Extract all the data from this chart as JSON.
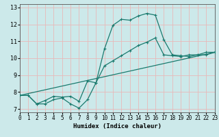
{
  "xlabel": "Humidex (Indice chaleur)",
  "xlim": [
    0,
    23
  ],
  "ylim": [
    6.8,
    13.2
  ],
  "yticks": [
    7,
    8,
    9,
    10,
    11,
    12,
    13
  ],
  "xticks": [
    0,
    1,
    2,
    3,
    4,
    5,
    6,
    7,
    8,
    9,
    10,
    11,
    12,
    13,
    14,
    15,
    16,
    17,
    18,
    19,
    20,
    21,
    22,
    23
  ],
  "bg_color": "#cce9ea",
  "grid_color": "#e8b8b8",
  "line_color": "#1a7a6e",
  "curve1_x": [
    0,
    1,
    2,
    3,
    4,
    5,
    6,
    7,
    8,
    9,
    10,
    11,
    12,
    13,
    14,
    15,
    16,
    17,
    18,
    19,
    20,
    21,
    22,
    23
  ],
  "curve1_y": [
    7.8,
    7.8,
    7.3,
    7.3,
    7.55,
    7.65,
    7.3,
    7.05,
    7.55,
    8.55,
    10.55,
    11.95,
    12.3,
    12.25,
    12.5,
    12.65,
    12.55,
    11.1,
    10.2,
    10.15,
    10.1,
    10.2,
    10.2,
    10.35
  ],
  "curve2_x": [
    0,
    1,
    2,
    3,
    4,
    5,
    6,
    7,
    8,
    9,
    10,
    11,
    12,
    13,
    14,
    15,
    16,
    17,
    18,
    19,
    20,
    21,
    22,
    23
  ],
  "curve2_y": [
    7.8,
    7.8,
    7.3,
    7.5,
    7.75,
    7.7,
    7.75,
    7.45,
    8.65,
    8.55,
    9.55,
    9.85,
    10.15,
    10.45,
    10.75,
    10.95,
    11.2,
    10.2,
    10.15,
    10.1,
    10.2,
    10.2,
    10.35,
    10.35
  ],
  "curve3_x": [
    0,
    23
  ],
  "curve3_y": [
    7.8,
    10.35
  ],
  "tick_fontsize": 5.5,
  "label_fontsize": 6.5
}
